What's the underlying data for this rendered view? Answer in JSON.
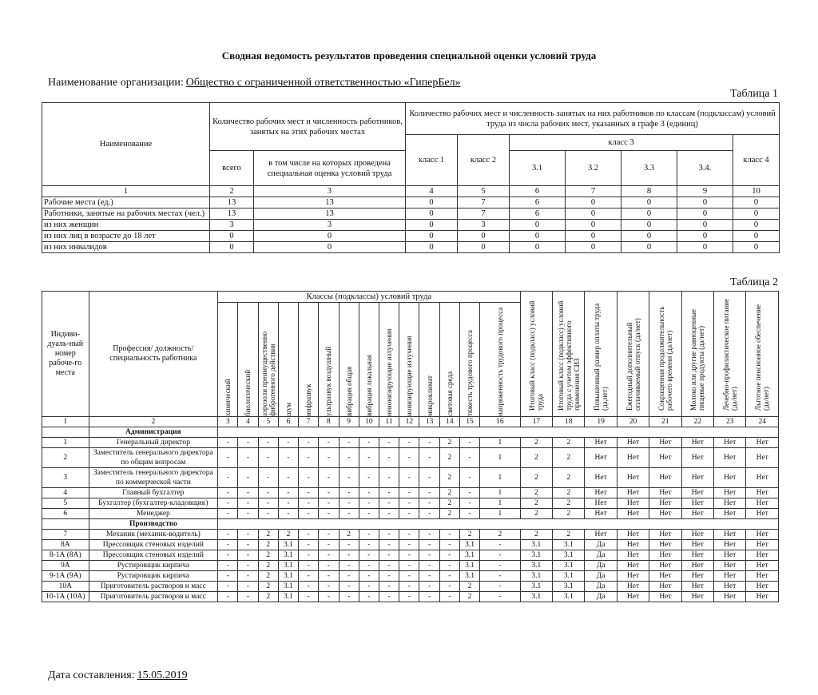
{
  "title": "Сводная ведомость результатов проведения специальной оценки условий труда",
  "organization": {
    "label": "Наименование организации:",
    "name": "Общество с ограниченной ответственностью «ГиперБел»"
  },
  "table1": {
    "caption": "Таблица 1",
    "headers": {
      "name": "Наименование",
      "count": "Количество рабочих мест и численность работников, занятых на этих рабочих местах",
      "classes": "Количество рабочих мест и численность занятых на них работников по классам (подклассам) условий труда из числа рабочих мест, указанных в графе 3 (единиц)",
      "total": "всего",
      "assessed": "в том числе на которых проведена специальная оценка условий труда",
      "class1": "класс 1",
      "class2": "класс 2",
      "class3": "класс 3",
      "class4": "класс 4",
      "sub": [
        "3.1",
        "3.2",
        "3.3",
        "3.4."
      ]
    },
    "column_numbers": [
      1,
      2,
      3,
      4,
      5,
      6,
      7,
      8,
      9,
      10
    ],
    "rows": [
      [
        "Рабочие места (ед.)",
        13,
        13,
        0,
        7,
        6,
        0,
        0,
        0,
        0
      ],
      [
        "Работники, занятые на рабочих местах (чел.)",
        13,
        13,
        0,
        7,
        6,
        0,
        0,
        0,
        0
      ],
      [
        "из них женщин",
        3,
        3,
        0,
        3,
        0,
        0,
        0,
        0,
        0
      ],
      [
        "из них лиц в возрасте до 18 лет",
        0,
        0,
        0,
        0,
        0,
        0,
        0,
        0,
        0
      ],
      [
        "из них инвалидов",
        0,
        0,
        0,
        0,
        0,
        0,
        0,
        0,
        0
      ]
    ]
  },
  "table2": {
    "caption": "Таблица 2",
    "headers": {
      "id": "Индиви-дуаль-ный номер рабоче-го места",
      "profession": "Профессия/ должность/ специальность работника",
      "classes": "Классы (подклассы) условий труда",
      "factors": [
        "химический",
        "биологический",
        "аэрозоли преимущественно фиброгенного действия",
        "шум",
        "инфразвук",
        "ультразвук воздушный",
        "вибрация общая",
        "вибрация локальная",
        "неионизирующие излучения",
        "ионизирующие излучения",
        "микроклимат",
        "световая среда",
        "тяжесть трудового процесса",
        "напряженность трудового процесса"
      ],
      "outcomes": [
        "Итоговый класс (подкласс) условий труда",
        "Итоговый класс (подкласс) условий труда с учетом эффективного применения СИЗ",
        "Повышенный размер оплаты труда (да,нет)",
        "Ежегодный дополнительный оплачиваемый отпуск (да/нет)",
        "Сокращенная продолжительность рабочего времени (да/нет)",
        "Молоко или другие равноценные пищевые продукты (да/нет)",
        "Лечебно-профилактическое питание (да/нет)",
        "Льготное пенсионное обеспечение (да/нет)"
      ]
    },
    "column_numbers": [
      1,
      2,
      3,
      4,
      5,
      6,
      7,
      8,
      9,
      10,
      11,
      12,
      13,
      14,
      15,
      16,
      17,
      18,
      19,
      20,
      21,
      22,
      23,
      24
    ],
    "sections": [
      {
        "title": "Администрация",
        "rows": [
          [
            "1",
            "Генеральный директор",
            "-",
            "-",
            "-",
            "-",
            "-",
            "-",
            "-",
            "-",
            "-",
            "-",
            "-",
            "2",
            "-",
            "1",
            "2",
            "2",
            "Нет",
            "Нет",
            "Нет",
            "Нет",
            "Нет",
            "Нет"
          ],
          [
            "2",
            "Заместитель генерального директора по общим вопросам",
            "-",
            "-",
            "-",
            "-",
            "-",
            "-",
            "-",
            "-",
            "-",
            "-",
            "-",
            "2",
            "-",
            "1",
            "2",
            "2",
            "Нет",
            "Нет",
            "Нет",
            "Нет",
            "Нет",
            "Нет"
          ],
          [
            "3",
            "Заместитель генерального директора по коммерческой части",
            "-",
            "-",
            "-",
            "-",
            "-",
            "-",
            "-",
            "-",
            "-",
            "-",
            "-",
            "2",
            "-",
            "1",
            "2",
            "2",
            "Нет",
            "Нет",
            "Нет",
            "Нет",
            "Нет",
            "Нет"
          ],
          [
            "4",
            "Главный бухгалтер",
            "-",
            "-",
            "-",
            "-",
            "-",
            "-",
            "-",
            "-",
            "-",
            "-",
            "-",
            "2",
            "-",
            "1",
            "2",
            "2",
            "Нет",
            "Нет",
            "Нет",
            "Нет",
            "Нет",
            "Нет"
          ],
          [
            "5",
            "Бухгалтер (бухгалтер-кладовщик)",
            "-",
            "-",
            "-",
            "-",
            "-",
            "-",
            "-",
            "-",
            "-",
            "-",
            "-",
            "2",
            "-",
            "1",
            "2",
            "2",
            "Нет",
            "Нет",
            "Нет",
            "Нет",
            "Нет",
            "Нет"
          ],
          [
            "6",
            "Менеджер",
            "-",
            "-",
            "-",
            "-",
            "-",
            "-",
            "-",
            "-",
            "-",
            "-",
            "-",
            "2",
            "-",
            "1",
            "2",
            "2",
            "Нет",
            "Нет",
            "Нет",
            "Нет",
            "Нет",
            "Нет"
          ]
        ]
      },
      {
        "title": "Производство",
        "rows": [
          [
            "7",
            "Механик (механик-водитель)",
            "-",
            "-",
            "2",
            "2",
            "-",
            "-",
            "2",
            "-",
            "-",
            "-",
            "-",
            "-",
            "2",
            "2",
            "2",
            "2",
            "Нет",
            "Нет",
            "Нет",
            "Нет",
            "Нет",
            "Нет"
          ],
          [
            "8А",
            "Прессовщик стеновых изделий",
            "-",
            "-",
            "2",
            "3.1",
            "-",
            "-",
            "-",
            "-",
            "-",
            "-",
            "-",
            "-",
            "3.1",
            "-",
            "3.1",
            "3.1",
            "Да",
            "Нет",
            "Нет",
            "Нет",
            "Нет",
            "Нет"
          ],
          [
            "8-1А (8А)",
            "Прессовщик стеновых изделий",
            "-",
            "-",
            "2",
            "3.1",
            "-",
            "-",
            "-",
            "-",
            "-",
            "-",
            "-",
            "-",
            "3.1",
            "-",
            "3.1",
            "3.1",
            "Да",
            "Нет",
            "Нет",
            "Нет",
            "Нет",
            "Нет"
          ],
          [
            "9А",
            "Рустировщик кирпича",
            "-",
            "-",
            "2",
            "3.1",
            "-",
            "-",
            "-",
            "-",
            "-",
            "-",
            "-",
            "-",
            "3.1",
            "-",
            "3.1",
            "3.1",
            "Да",
            "Нет",
            "Нет",
            "Нет",
            "Нет",
            "Нет"
          ],
          [
            "9-1А (9А)",
            "Рустировщик кирпича",
            "-",
            "-",
            "2",
            "3.1",
            "-",
            "-",
            "-",
            "-",
            "-",
            "-",
            "-",
            "-",
            "3.1",
            "-",
            "3.1",
            "3.1",
            "Да",
            "Нет",
            "Нет",
            "Нет",
            "Нет",
            "Нет"
          ],
          [
            "10А",
            "Приготовитель растворов и масс",
            "-",
            "-",
            "2",
            "3.1",
            "-",
            "-",
            "-",
            "-",
            "-",
            "-",
            "-",
            "-",
            "2",
            "-",
            "3.1",
            "3.1",
            "Да",
            "Нет",
            "Нет",
            "Нет",
            "Нет",
            "Нет"
          ],
          [
            "10-1А (10А)",
            "Приготовитель растворов и масс",
            "-",
            "-",
            "2",
            "3.1",
            "-",
            "-",
            "-",
            "-",
            "-",
            "-",
            "-",
            "-",
            "2",
            "-",
            "3.1",
            "3.1",
            "Да",
            "Нет",
            "Нет",
            "Нет",
            "Нет",
            "Нет"
          ]
        ]
      }
    ]
  },
  "footer": {
    "label": "Дата составления:",
    "date": "15.05.2019"
  }
}
